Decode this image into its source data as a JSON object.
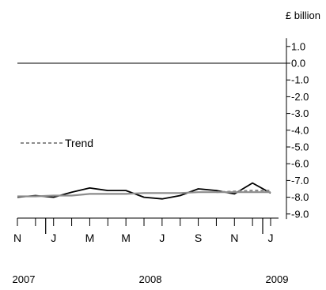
{
  "chart_data": {
    "type": "line",
    "ylabel": "£ billion",
    "ylim": [
      -9.5,
      1.5
    ],
    "yticks": [
      1.0,
      0.0,
      -1.0,
      -2.0,
      -3.0,
      -4.0,
      -5.0,
      -6.0,
      -7.0,
      -8.0,
      -9.0
    ],
    "ytick_labels": [
      "1.0",
      "0.0",
      "-1.0",
      "-2.0",
      "-3.0",
      "-4.0",
      "-5.0",
      "-6.0",
      "-7.0",
      "-8.0",
      "-9.0"
    ],
    "x": [
      "2007-11",
      "2007-12",
      "2008-01",
      "2008-02",
      "2008-03",
      "2008-04",
      "2008-05",
      "2008-06",
      "2008-07",
      "2008-08",
      "2008-09",
      "2008-10",
      "2008-11",
      "2008-12",
      "2009-01"
    ],
    "xtick_labels": [
      "N",
      "J",
      "M",
      "M",
      "J",
      "S",
      "N",
      "J"
    ],
    "xtick_months": [
      "2007-11",
      "2008-01",
      "2008-03",
      "2008-05",
      "2008-07",
      "2008-09",
      "2008-11",
      "2009-01"
    ],
    "year_labels": [
      {
        "label": "2007",
        "at": "2007-11"
      },
      {
        "label": "2008",
        "at": "2008-06"
      },
      {
        "label": "2009",
        "at": "2009-01"
      }
    ],
    "series": [
      {
        "name": "",
        "style": "solid",
        "color": "#000000",
        "values": [
          -8.0,
          -7.9,
          -8.0,
          -7.7,
          -7.45,
          -7.6,
          -7.6,
          -8.0,
          -8.1,
          -7.9,
          -7.5,
          -7.6,
          -7.8,
          -7.15,
          -7.75
        ]
      },
      {
        "name": "",
        "style": "solid",
        "color": "#8c8c8c",
        "values": [
          -7.95,
          -7.95,
          -7.9,
          -7.9,
          -7.8,
          -7.8,
          -7.8,
          -7.75,
          -7.75,
          -7.75,
          -7.7,
          -7.7,
          -7.7,
          -7.7,
          -7.7
        ]
      },
      {
        "name": "Trend",
        "style": "dashed",
        "color": "#8c8c8c",
        "values": [
          null,
          null,
          null,
          null,
          null,
          null,
          null,
          null,
          null,
          null,
          null,
          -7.7,
          -7.65,
          -7.6,
          -7.6
        ]
      }
    ],
    "zero_line": true,
    "grid": false,
    "legend": {
      "position": "middle-left",
      "entries": [
        {
          "label": "Trend",
          "style": "dashed",
          "color": "#8c8c8c"
        }
      ]
    }
  }
}
